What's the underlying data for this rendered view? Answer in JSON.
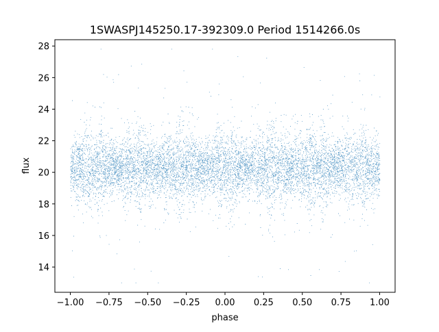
{
  "chart_data": {
    "type": "scatter",
    "title": "1SWASPJ145250.17-392309.0 Period 1514266.0s",
    "xlabel": "phase",
    "ylabel": "flux",
    "xlim": [
      -1.1,
      1.1
    ],
    "ylim": [
      12.4,
      28.4
    ],
    "xticks": [
      -1.0,
      -0.75,
      -0.5,
      -0.25,
      0.0,
      0.25,
      0.5,
      0.75,
      1.0
    ],
    "xtick_labels": [
      "−1.00",
      "−0.75",
      "−0.50",
      "−0.25",
      "0.00",
      "0.25",
      "0.50",
      "0.75",
      "1.00"
    ],
    "yticks": [
      14,
      16,
      18,
      20,
      22,
      24,
      26,
      28
    ],
    "ytick_labels": [
      "14",
      "16",
      "18",
      "20",
      "22",
      "24",
      "26",
      "28"
    ],
    "grid": false,
    "series": [
      {
        "color": "#1f77b4",
        "marker_size": 0.6,
        "description_of_distribution": "dense cloud of points across phase -1..1",
        "x_range": [
          -1.0,
          1.0
        ],
        "core_flux_range": [
          18.0,
          22.5
        ],
        "center_flux": 20.3,
        "extreme_flux_range": [
          13.0,
          27.8
        ]
      }
    ]
  }
}
